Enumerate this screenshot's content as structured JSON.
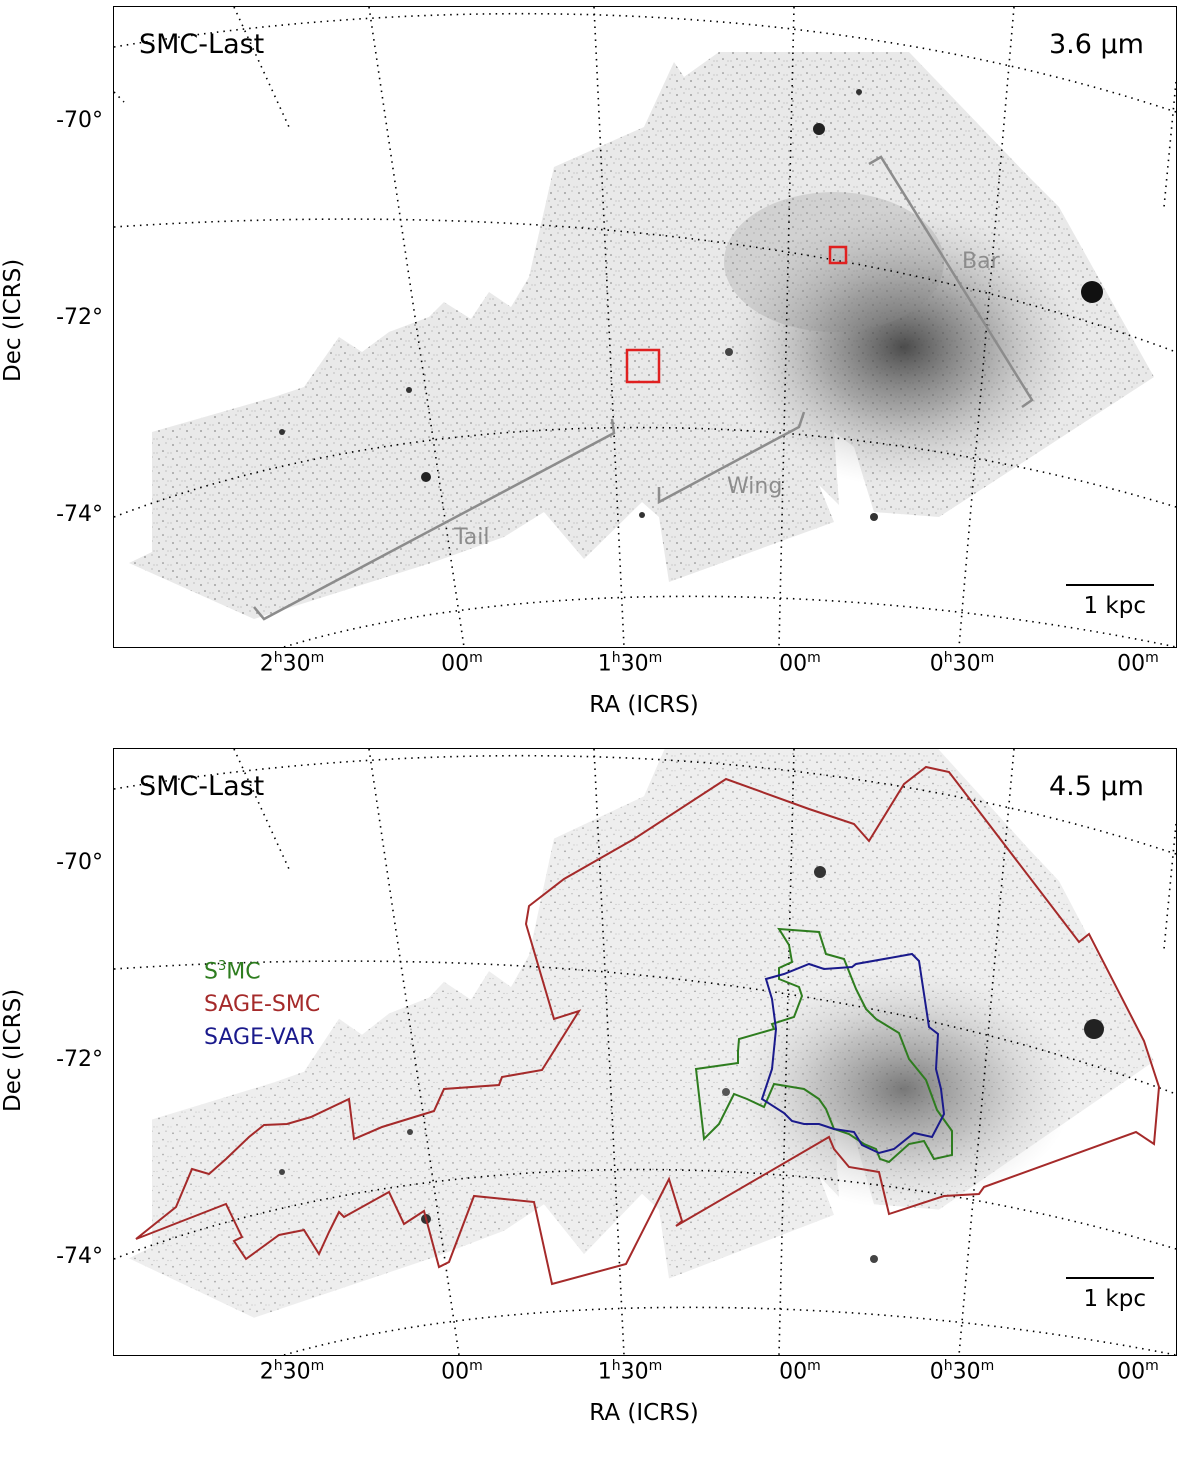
{
  "panels": [
    {
      "title": "SMC-Last",
      "band": "3.6 µm",
      "scalebar": "1 kpc",
      "ylabel": "Dec (ICRS)",
      "xlabel": "RA (ICRS)",
      "yticks": [
        "-70°",
        "-72°",
        "-74°"
      ],
      "xticks": [
        {
          "h": "2",
          "hs": "h",
          "m": "30",
          "ms": "m"
        },
        {
          "h": "",
          "hs": "",
          "m": "00",
          "ms": "m"
        },
        {
          "h": "1",
          "hs": "h",
          "m": "30",
          "ms": "m"
        },
        {
          "h": "",
          "hs": "",
          "m": "00",
          "ms": "m"
        },
        {
          "h": "0",
          "hs": "h",
          "m": "30",
          "ms": "m"
        },
        {
          "h": "",
          "hs": "",
          "m": "00",
          "ms": "m"
        }
      ],
      "regions": {
        "bar": "Bar",
        "wing": "Wing",
        "tail": "Tail"
      }
    },
    {
      "title": "SMC-Last",
      "band": "4.5 µm",
      "scalebar": "1 kpc",
      "ylabel": "Dec (ICRS)",
      "xlabel": "RA (ICRS)",
      "yticks": [
        "-70°",
        "-72°",
        "-74°"
      ],
      "xticks": [
        {
          "h": "2",
          "hs": "h",
          "m": "30",
          "ms": "m"
        },
        {
          "h": "",
          "hs": "",
          "m": "00",
          "ms": "m"
        },
        {
          "h": "1",
          "hs": "h",
          "m": "30",
          "ms": "m"
        },
        {
          "h": "",
          "hs": "",
          "m": "00",
          "ms": "m"
        },
        {
          "h": "0",
          "hs": "h",
          "m": "30",
          "ms": "m"
        },
        {
          "h": "",
          "hs": "",
          "m": "00",
          "ms": "m"
        }
      ],
      "legend": [
        {
          "pre": "S",
          "sup": "3",
          "post": "MC",
          "color": "#2e7d1f"
        },
        {
          "pre": "SAGE-SMC",
          "sup": "",
          "post": "",
          "color": "#a52a2a"
        },
        {
          "pre": "SAGE-VAR",
          "sup": "",
          "post": "",
          "color": "#1a1a8c"
        }
      ]
    }
  ],
  "colors": {
    "sage_smc": "#a52a2a",
    "s3mc": "#2e7d1f",
    "sage_var": "#1a1a8c",
    "region_marker": "#8c8c8c",
    "highlight_box": "#e02020"
  }
}
